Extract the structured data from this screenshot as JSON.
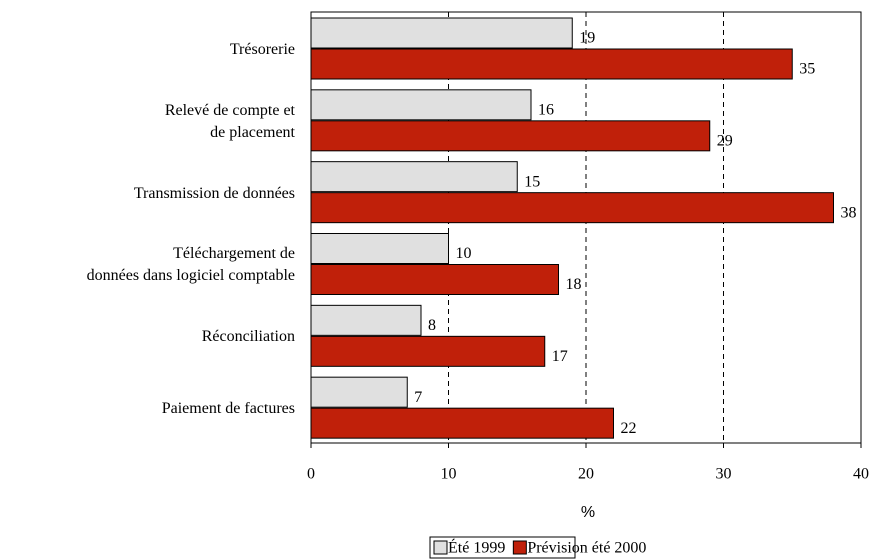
{
  "chart_data": {
    "type": "bar",
    "orientation": "horizontal",
    "categories": [
      "Trésorerie",
      "Relevé de compte et\nde placement",
      "Transmission de données",
      "Téléchargement de\ndonnées dans logiciel comptable",
      "Réconciliation",
      "Paiement de factures"
    ],
    "series": [
      {
        "name": "Été 1999",
        "color": "#e0e0e0",
        "values": [
          19,
          16,
          15,
          10,
          8,
          7
        ]
      },
      {
        "name": "Prévision été 2000",
        "color": "#c0200a",
        "values": [
          35,
          29,
          38,
          18,
          17,
          22
        ]
      }
    ],
    "xlabel": "%",
    "xlim": [
      0,
      40
    ],
    "xticks": [
      0,
      10,
      20,
      30,
      40
    ],
    "grid": true,
    "legend": "bottom"
  }
}
